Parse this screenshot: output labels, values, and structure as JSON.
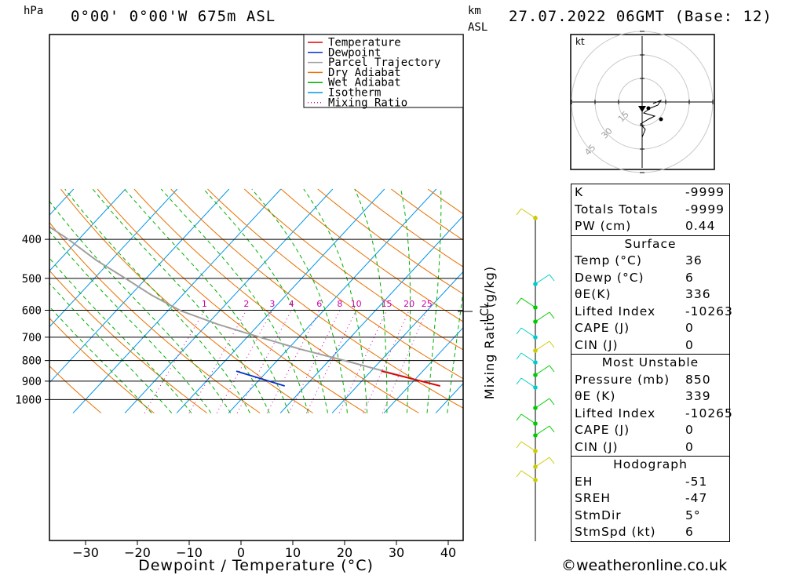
{
  "header": {
    "location": "0°00' 0°00'W 675m ASL",
    "datetime": "27.07.2022 06GMT (Base: 12)",
    "hpa_label": "hPa",
    "km_label": "km",
    "asl_label": "ASL",
    "footer": "©weatheronline.co.uk"
  },
  "chart_data": {
    "type": "line",
    "xlabel": "Dewpoint / Temperature (°C)",
    "ylabel": "Mixing Ratio (g/kg)",
    "x_ticks": [
      -30,
      -20,
      -10,
      0,
      10,
      20,
      30,
      40
    ],
    "pressure_levels": [
      400,
      500,
      600,
      700,
      800,
      900,
      1000
    ],
    "mixing_ratio_labels": [
      "1",
      "2",
      "3",
      "4",
      "6",
      "8",
      "10",
      "15",
      "20",
      "25"
    ],
    "lcl_label": "LCL",
    "lcl_pressure": 602,
    "legend": [
      {
        "name": "Temperature",
        "color": "#e60000"
      },
      {
        "name": "Dewpoint",
        "color": "#0033cc"
      },
      {
        "name": "Parcel Trajectory",
        "color": "#a0a0a0"
      },
      {
        "name": "Dry Adiabat",
        "color": "#e87000"
      },
      {
        "name": "Wet Adiabat",
        "color": "#00b000"
      },
      {
        "name": "Isotherm",
        "color": "#0095e6"
      },
      {
        "name": "Mixing Ratio",
        "color": "#cc00aa"
      }
    ],
    "temperature": {
      "p": [
        850,
        925
      ],
      "t": [
        22,
        36
      ]
    },
    "dewpoint": {
      "p": [
        850,
        925
      ],
      "t": [
        -6,
        6
      ]
    },
    "parcel": {
      "p": [
        925,
        900,
        850,
        800,
        750,
        700,
        650,
        602,
        550,
        500,
        450,
        400,
        350,
        300
      ],
      "t": [
        36,
        31.5,
        22.5,
        13,
        2.5,
        -7.5,
        -18,
        -27.5,
        -36,
        -44,
        -53,
        -62,
        -73,
        -84
      ]
    },
    "hodograph": {
      "label": "kt",
      "ring_labels": [
        "15",
        "30",
        "45"
      ]
    }
  },
  "stats": {
    "indices": [
      {
        "label": "K",
        "value": "-9999"
      },
      {
        "label": "Totals Totals",
        "value": "-9999"
      },
      {
        "label": "PW (cm)",
        "value": "0.44"
      }
    ],
    "surface_title": "Surface",
    "surface": [
      {
        "label": "Temp (°C)",
        "value": "36"
      },
      {
        "label": "Dewp (°C)",
        "value": "6"
      },
      {
        "label": "θE(K)",
        "value": "336"
      },
      {
        "label": "Lifted Index",
        "value": "-10263"
      },
      {
        "label": "CAPE (J)",
        "value": "0"
      },
      {
        "label": "CIN (J)",
        "value": "0"
      }
    ],
    "mu_title": "Most Unstable",
    "mu": [
      {
        "label": "Pressure (mb)",
        "value": "850"
      },
      {
        "label": "θE (K)",
        "value": "339"
      },
      {
        "label": "Lifted Index",
        "value": "-10265"
      },
      {
        "label": "CAPE (J)",
        "value": "0"
      },
      {
        "label": "CIN (J)",
        "value": "0"
      }
    ],
    "hodo_title": "Hodograph",
    "hodo": [
      {
        "label": "EH",
        "value": "-51"
      },
      {
        "label": "SREH",
        "value": "-47"
      },
      {
        "label": "StmDir",
        "value": "5°"
      },
      {
        "label": "StmSpd (kt)",
        "value": "6"
      }
    ]
  }
}
